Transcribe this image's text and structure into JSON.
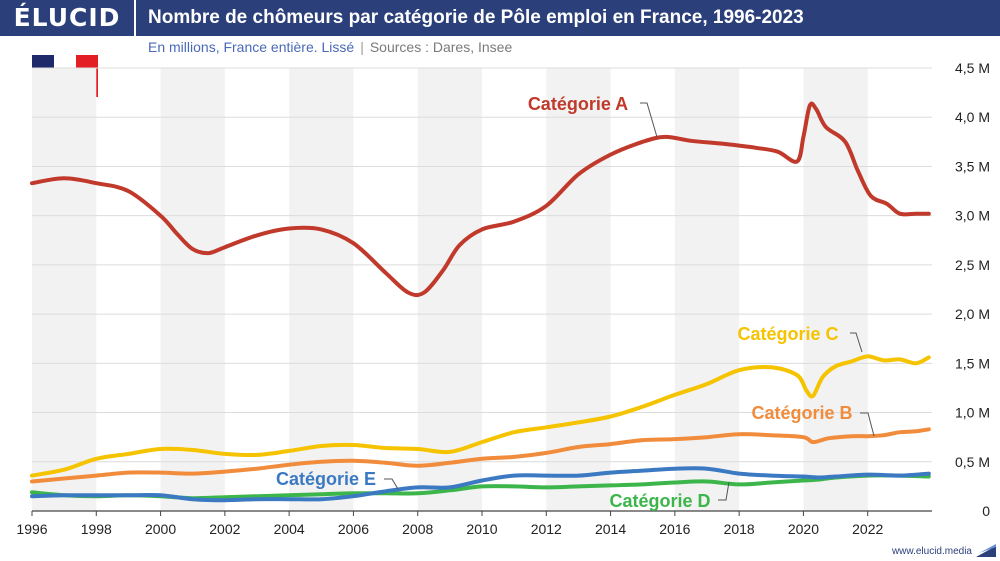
{
  "header": {
    "logo": "ÉLUCID",
    "title": "Nombre de chômeurs par catégorie de Pôle emploi en France, 1996-2023"
  },
  "subtitle": {
    "main": "En millions, France entière. Lissé",
    "separator": "|",
    "sources": "Sources : Dares, Insee"
  },
  "footer": {
    "url": "www.elucid.media"
  },
  "flag": {
    "colors": [
      "#1f2a6b",
      "#ffffff",
      "#e31e24"
    ]
  },
  "colors": {
    "header_bg": "#2b3f7a",
    "grid_band": "#f2f2f2"
  },
  "chart_data": {
    "type": "line",
    "title": "Nombre de chômeurs par catégorie de Pôle emploi en France, 1996-2023",
    "subtitle": "En millions, France entière. Lissé",
    "xlabel": "",
    "ylabel": "",
    "xlim": [
      1996,
      2024
    ],
    "ylim": [
      0,
      4.5
    ],
    "x_ticks": [
      "1996",
      "1998",
      "2000",
      "2002",
      "2004",
      "2006",
      "2008",
      "2010",
      "2012",
      "2014",
      "2016",
      "2018",
      "2020",
      "2022"
    ],
    "x_tick_values": [
      1996,
      1998,
      2000,
      2002,
      2004,
      2006,
      2008,
      2010,
      2012,
      2014,
      2016,
      2018,
      2020,
      2022
    ],
    "y_tick_values": [
      0,
      0.5,
      1.0,
      1.5,
      2.0,
      2.5,
      3.0,
      3.5,
      4.0,
      4.5
    ],
    "y_ticks": [
      "0",
      "0,5 M",
      "1,0 M",
      "1,5 M",
      "2,0 M",
      "2,5 M",
      "3,0 M",
      "3,5 M",
      "4,0 M",
      "4,5 M"
    ],
    "grid": true,
    "series": [
      {
        "name": "Catégorie A",
        "color": "#c0392b",
        "points": [
          [
            1996,
            3.33
          ],
          [
            1997,
            3.38
          ],
          [
            1998,
            3.33
          ],
          [
            1999,
            3.25
          ],
          [
            2000,
            3.0
          ],
          [
            2000.5,
            2.82
          ],
          [
            2001,
            2.66
          ],
          [
            2001.5,
            2.62
          ],
          [
            2002,
            2.68
          ],
          [
            2003,
            2.8
          ],
          [
            2004,
            2.87
          ],
          [
            2005,
            2.86
          ],
          [
            2006,
            2.72
          ],
          [
            2007,
            2.42
          ],
          [
            2007.7,
            2.22
          ],
          [
            2008.2,
            2.22
          ],
          [
            2008.8,
            2.45
          ],
          [
            2009.3,
            2.7
          ],
          [
            2010,
            2.86
          ],
          [
            2011,
            2.94
          ],
          [
            2012,
            3.1
          ],
          [
            2013,
            3.42
          ],
          [
            2014,
            3.62
          ],
          [
            2015,
            3.75
          ],
          [
            2015.7,
            3.8
          ],
          [
            2016.5,
            3.76
          ],
          [
            2017.5,
            3.73
          ],
          [
            2018.5,
            3.69
          ],
          [
            2019.2,
            3.65
          ],
          [
            2019.8,
            3.55
          ],
          [
            2020,
            3.8
          ],
          [
            2020.2,
            4.12
          ],
          [
            2020.4,
            4.08
          ],
          [
            2020.7,
            3.9
          ],
          [
            2021.3,
            3.75
          ],
          [
            2021.7,
            3.45
          ],
          [
            2022.1,
            3.2
          ],
          [
            2022.6,
            3.12
          ],
          [
            2023,
            3.02
          ],
          [
            2023.5,
            3.02
          ],
          [
            2023.9,
            3.02
          ]
        ]
      },
      {
        "name": "Catégorie B",
        "color": "#f08c3c",
        "points": [
          [
            1996,
            0.3
          ],
          [
            1997,
            0.33
          ],
          [
            1998,
            0.36
          ],
          [
            1999,
            0.39
          ],
          [
            2000,
            0.39
          ],
          [
            2001,
            0.38
          ],
          [
            2002,
            0.4
          ],
          [
            2003,
            0.43
          ],
          [
            2004,
            0.47
          ],
          [
            2005,
            0.5
          ],
          [
            2006,
            0.51
          ],
          [
            2007,
            0.49
          ],
          [
            2008,
            0.46
          ],
          [
            2009,
            0.49
          ],
          [
            2010,
            0.53
          ],
          [
            2011,
            0.55
          ],
          [
            2012,
            0.59
          ],
          [
            2013,
            0.65
          ],
          [
            2014,
            0.68
          ],
          [
            2015,
            0.72
          ],
          [
            2016,
            0.73
          ],
          [
            2017,
            0.75
          ],
          [
            2018,
            0.78
          ],
          [
            2019,
            0.77
          ],
          [
            2020,
            0.75
          ],
          [
            2020.3,
            0.7
          ],
          [
            2020.8,
            0.74
          ],
          [
            2021.5,
            0.76
          ],
          [
            2022,
            0.76
          ],
          [
            2022.5,
            0.77
          ],
          [
            2023,
            0.8
          ],
          [
            2023.5,
            0.81
          ],
          [
            2023.9,
            0.83
          ]
        ]
      },
      {
        "name": "Catégorie C",
        "color": "#f5c300",
        "points": [
          [
            1996,
            0.36
          ],
          [
            1997,
            0.42
          ],
          [
            1998,
            0.53
          ],
          [
            1999,
            0.58
          ],
          [
            2000,
            0.63
          ],
          [
            2001,
            0.62
          ],
          [
            2002,
            0.58
          ],
          [
            2003,
            0.57
          ],
          [
            2004,
            0.61
          ],
          [
            2005,
            0.66
          ],
          [
            2006,
            0.67
          ],
          [
            2007,
            0.64
          ],
          [
            2008,
            0.63
          ],
          [
            2009,
            0.6
          ],
          [
            2010,
            0.7
          ],
          [
            2011,
            0.8
          ],
          [
            2012,
            0.85
          ],
          [
            2013,
            0.9
          ],
          [
            2014,
            0.96
          ],
          [
            2015,
            1.06
          ],
          [
            2016,
            1.18
          ],
          [
            2017,
            1.29
          ],
          [
            2018,
            1.43
          ],
          [
            2019,
            1.46
          ],
          [
            2019.8,
            1.38
          ],
          [
            2020.1,
            1.22
          ],
          [
            2020.3,
            1.17
          ],
          [
            2020.6,
            1.36
          ],
          [
            2021,
            1.47
          ],
          [
            2021.5,
            1.52
          ],
          [
            2022,
            1.57
          ],
          [
            2022.5,
            1.53
          ],
          [
            2023,
            1.54
          ],
          [
            2023.5,
            1.5
          ],
          [
            2023.9,
            1.56
          ]
        ]
      },
      {
        "name": "Catégorie D",
        "color": "#3cb54a",
        "points": [
          [
            1996,
            0.19
          ],
          [
            1997,
            0.16
          ],
          [
            1998,
            0.15
          ],
          [
            1999,
            0.16
          ],
          [
            2000,
            0.15
          ],
          [
            2001,
            0.13
          ],
          [
            2002,
            0.14
          ],
          [
            2003,
            0.15
          ],
          [
            2004,
            0.16
          ],
          [
            2005,
            0.17
          ],
          [
            2006,
            0.18
          ],
          [
            2007,
            0.18
          ],
          [
            2008,
            0.18
          ],
          [
            2009,
            0.21
          ],
          [
            2010,
            0.25
          ],
          [
            2011,
            0.25
          ],
          [
            2012,
            0.24
          ],
          [
            2013,
            0.25
          ],
          [
            2014,
            0.26
          ],
          [
            2015,
            0.27
          ],
          [
            2016,
            0.29
          ],
          [
            2017,
            0.3
          ],
          [
            2018,
            0.27
          ],
          [
            2019,
            0.29
          ],
          [
            2020,
            0.31
          ],
          [
            2020.5,
            0.32
          ],
          [
            2021,
            0.34
          ],
          [
            2022,
            0.36
          ],
          [
            2023,
            0.36
          ],
          [
            2023.9,
            0.35
          ]
        ]
      },
      {
        "name": "Catégorie E",
        "color": "#3b7ac2",
        "points": [
          [
            1996,
            0.15
          ],
          [
            1997,
            0.16
          ],
          [
            1998,
            0.16
          ],
          [
            1999,
            0.16
          ],
          [
            2000,
            0.16
          ],
          [
            2001,
            0.12
          ],
          [
            2002,
            0.11
          ],
          [
            2003,
            0.12
          ],
          [
            2004,
            0.12
          ],
          [
            2005,
            0.12
          ],
          [
            2006,
            0.15
          ],
          [
            2007,
            0.2
          ],
          [
            2008,
            0.24
          ],
          [
            2009,
            0.24
          ],
          [
            2010,
            0.31
          ],
          [
            2011,
            0.36
          ],
          [
            2012,
            0.36
          ],
          [
            2013,
            0.36
          ],
          [
            2014,
            0.39
          ],
          [
            2015,
            0.41
          ],
          [
            2016,
            0.43
          ],
          [
            2017,
            0.43
          ],
          [
            2018,
            0.38
          ],
          [
            2019,
            0.36
          ],
          [
            2020,
            0.35
          ],
          [
            2020.5,
            0.34
          ],
          [
            2021,
            0.35
          ],
          [
            2022,
            0.37
          ],
          [
            2023,
            0.36
          ],
          [
            2023.9,
            0.38
          ]
        ]
      }
    ],
    "labels": [
      {
        "series": "Catégorie A",
        "text": "Catégorie A"
      },
      {
        "series": "Catégorie B",
        "text": "Catégorie B"
      },
      {
        "series": "Catégorie C",
        "text": "Catégorie C"
      },
      {
        "series": "Catégorie D",
        "text": "Catégorie D"
      },
      {
        "series": "Catégorie E",
        "text": "Catégorie E"
      }
    ]
  }
}
